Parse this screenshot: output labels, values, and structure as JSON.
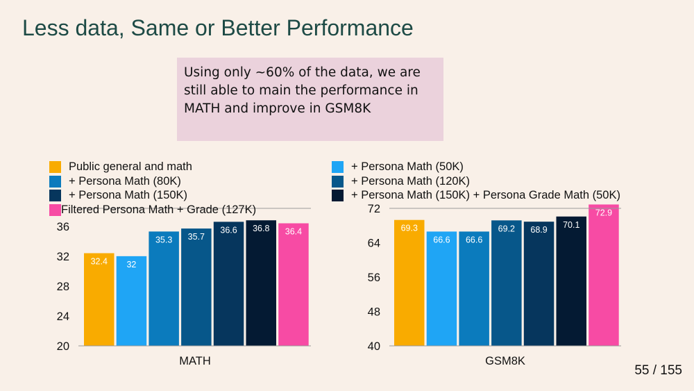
{
  "slide": {
    "title": "Less data, Same or Better Performance",
    "callout": "Using only ~60% of the data, we are still able to main the performance in MATH and improve in GSM8K",
    "page_number": "55 / 155"
  },
  "legend": [
    {
      "label": "Public general and math",
      "color": "#f9ab00"
    },
    {
      "label": "+ Persona Math (50K)",
      "color": "#1fa5f5"
    },
    {
      "label": "+ Persona Math (80K)",
      "color": "#0b7bbd"
    },
    {
      "label": "+ Persona Math (120K)",
      "color": "#07578a"
    },
    {
      "label": "+ Persona Math (150K)",
      "color": "#06365d"
    },
    {
      "label": "+ Persona Math (150K) + Persona Grade Math (50K)",
      "color": "#041a33"
    },
    {
      "label": "Filtered Persona Math + Grade (127K)",
      "color": "#f74ba4"
    }
  ],
  "chart_data": [
    {
      "type": "bar",
      "title": "",
      "xlabel": "MATH",
      "ylabel": "",
      "categories": [
        "MATH"
      ],
      "ylim": [
        20,
        38.4
      ],
      "ticks": [
        20,
        24,
        28,
        32,
        36
      ],
      "grid": false,
      "series": [
        {
          "name": "Public general and math",
          "values": [
            32.4
          ],
          "color": "#f9ab00"
        },
        {
          "name": "+ Persona Math (50K)",
          "values": [
            32
          ],
          "color": "#1fa5f5"
        },
        {
          "name": "+ Persona Math (80K)",
          "values": [
            35.3
          ],
          "color": "#0b7bbd"
        },
        {
          "name": "+ Persona Math (120K)",
          "values": [
            35.7
          ],
          "color": "#07578a"
        },
        {
          "name": "+ Persona Math (150K)",
          "values": [
            36.6
          ],
          "color": "#06365d"
        },
        {
          "name": "+ Persona Math (150K) + Persona Grade Math (50K)",
          "values": [
            36.8
          ],
          "color": "#041a33"
        },
        {
          "name": "Filtered Persona Math + Grade (127K)",
          "values": [
            36.4
          ],
          "color": "#f74ba4"
        }
      ]
    },
    {
      "type": "bar",
      "title": "",
      "xlabel": "GSM8K",
      "ylabel": "",
      "categories": [
        "GSM8K"
      ],
      "ylim": [
        40,
        72
      ],
      "ticks": [
        40,
        48,
        56,
        64,
        72
      ],
      "grid": false,
      "series": [
        {
          "name": "Public general and math",
          "values": [
            69.3
          ],
          "color": "#f9ab00"
        },
        {
          "name": "+ Persona Math (50K)",
          "values": [
            66.6
          ],
          "color": "#1fa5f5"
        },
        {
          "name": "+ Persona Math (80K)",
          "values": [
            66.6
          ],
          "color": "#0b7bbd"
        },
        {
          "name": "+ Persona Math (120K)",
          "values": [
            69.2
          ],
          "color": "#07578a"
        },
        {
          "name": "+ Persona Math (150K)",
          "values": [
            68.9
          ],
          "color": "#06365d"
        },
        {
          "name": "+ Persona Math (150K) + Persona Grade Math (50K)",
          "values": [
            70.1
          ],
          "color": "#041a33"
        },
        {
          "name": "Filtered Persona Math + Grade (127K)",
          "values": [
            72.9
          ],
          "color": "#f74ba4"
        }
      ]
    }
  ]
}
